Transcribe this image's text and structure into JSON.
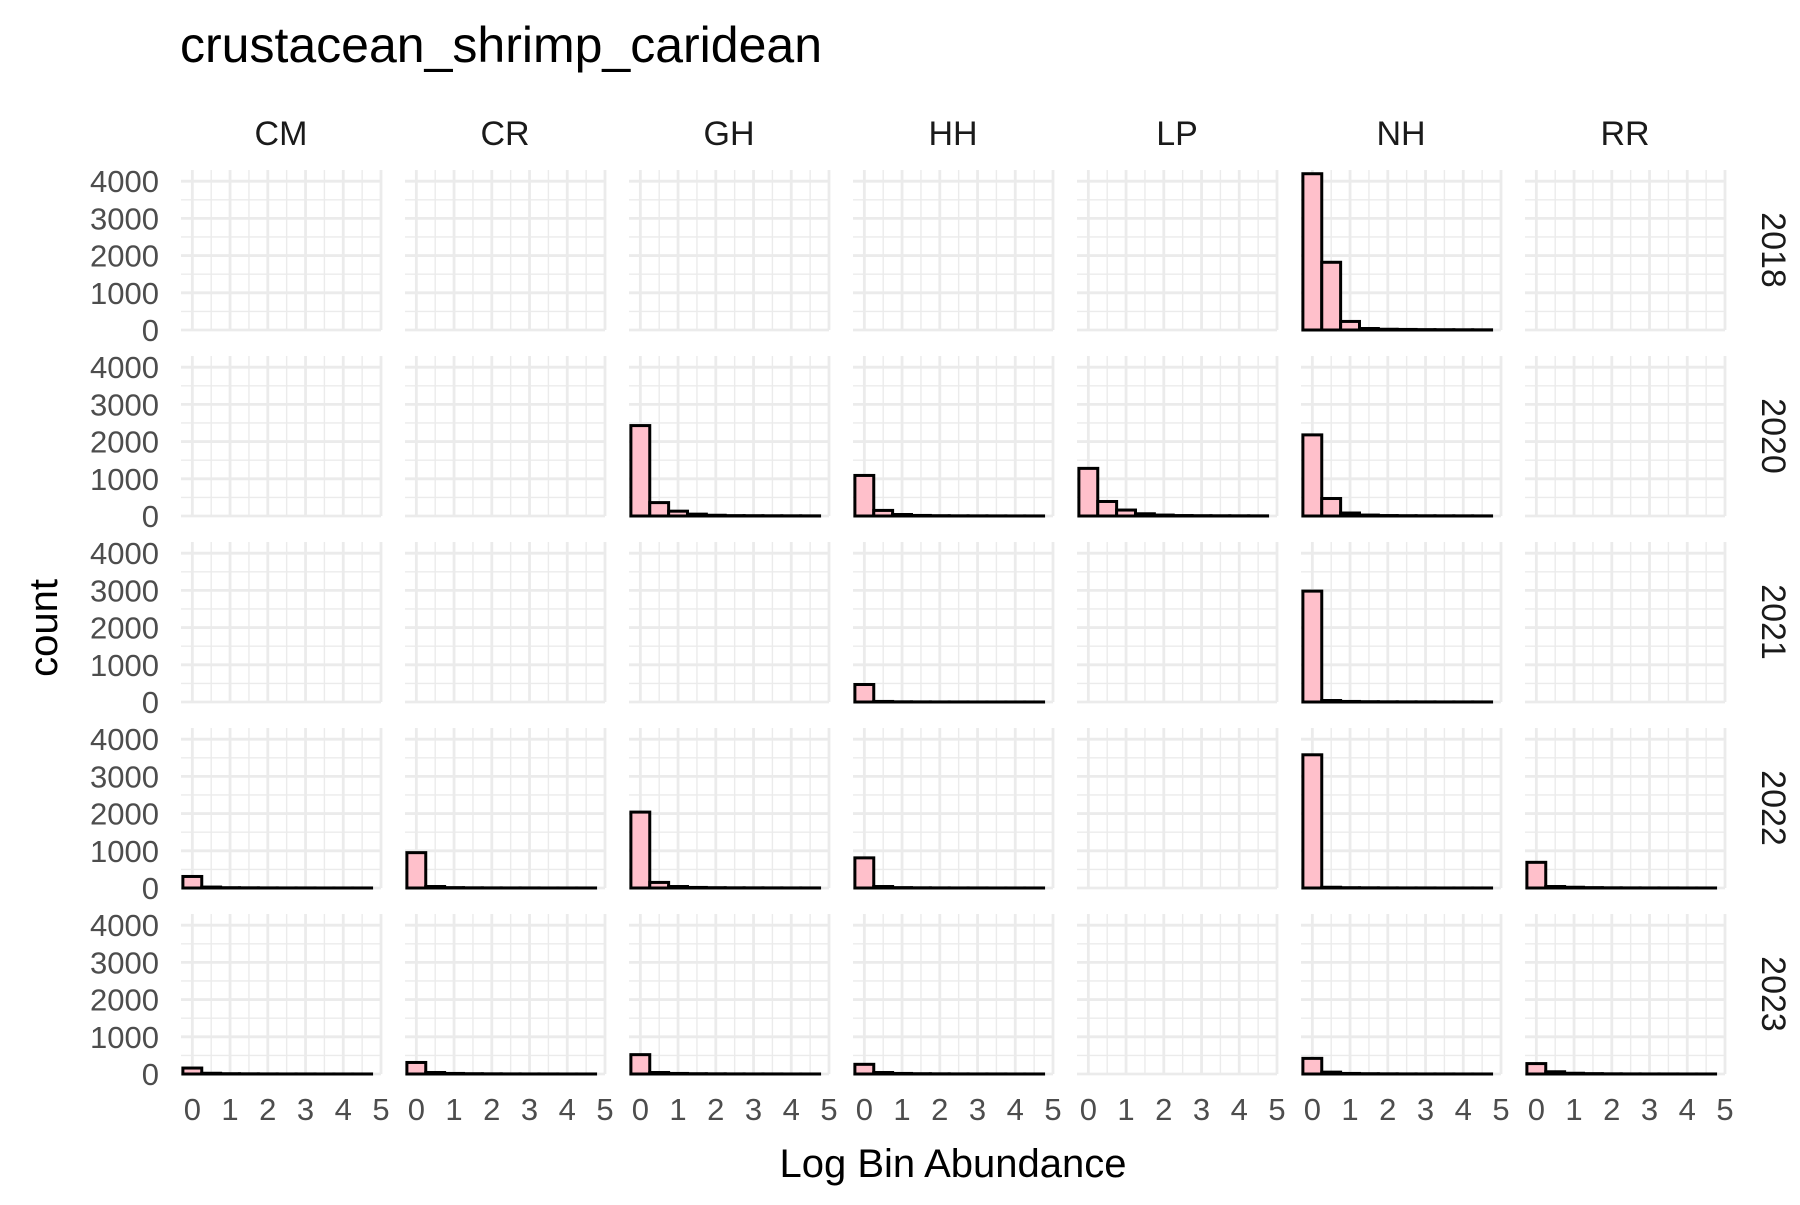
{
  "chart_data": {
    "type": "bar",
    "title": "crustacean_shrimp_caridean",
    "xlabel": "Log Bin Abundance",
    "ylabel": "count",
    "columns": [
      "CM",
      "CR",
      "GH",
      "HH",
      "LP",
      "NH",
      "RR"
    ],
    "rows": [
      "2018",
      "2020",
      "2021",
      "2022",
      "2023"
    ],
    "x_ticks": [
      0,
      1,
      2,
      3,
      4,
      5
    ],
    "y_ticks": [
      0,
      1000,
      2000,
      3000,
      4000
    ],
    "xlim": [
      -0.3,
      5.0
    ],
    "ylim": [
      0,
      4300
    ],
    "bin_width": 0.5,
    "bin_starts": [
      -0.25,
      0.25,
      0.75,
      1.25,
      1.75,
      2.25,
      2.75,
      3.25,
      3.75,
      4.25
    ],
    "grid": true,
    "fill_color": "#ffc0cb",
    "outline_color": "#000000",
    "grid_color": "#ebebeb",
    "panels": [
      {
        "column": "NH",
        "row": "2018",
        "counts": [
          4200,
          1820,
          230,
          40,
          20,
          15,
          10,
          8,
          6,
          5
        ]
      },
      {
        "column": "GH",
        "row": "2020",
        "counts": [
          2430,
          360,
          130,
          50,
          20,
          10,
          8,
          6,
          5,
          4
        ]
      },
      {
        "column": "HH",
        "row": "2020",
        "counts": [
          1090,
          150,
          40,
          15,
          8,
          5,
          4,
          3,
          2,
          2
        ]
      },
      {
        "column": "LP",
        "row": "2020",
        "counts": [
          1280,
          390,
          160,
          60,
          25,
          12,
          8,
          6,
          5,
          4
        ]
      },
      {
        "column": "NH",
        "row": "2020",
        "counts": [
          2180,
          470,
          80,
          25,
          12,
          8,
          6,
          5,
          4,
          3
        ]
      },
      {
        "column": "HH",
        "row": "2021",
        "counts": [
          470,
          15,
          5,
          3,
          2,
          2,
          1,
          1,
          1,
          1
        ]
      },
      {
        "column": "NH",
        "row": "2021",
        "counts": [
          2980,
          40,
          15,
          8,
          5,
          4,
          3,
          2,
          2,
          2
        ]
      },
      {
        "column": "CM",
        "row": "2022",
        "counts": [
          310,
          25,
          8,
          5,
          3,
          2,
          2,
          1,
          1,
          1
        ]
      },
      {
        "column": "CR",
        "row": "2022",
        "counts": [
          950,
          40,
          10,
          5,
          3,
          2,
          2,
          1,
          1,
          1
        ]
      },
      {
        "column": "GH",
        "row": "2022",
        "counts": [
          2040,
          150,
          40,
          15,
          8,
          5,
          4,
          3,
          2,
          2
        ]
      },
      {
        "column": "HH",
        "row": "2022",
        "counts": [
          810,
          40,
          10,
          5,
          3,
          2,
          2,
          1,
          1,
          1
        ]
      },
      {
        "column": "NH",
        "row": "2022",
        "counts": [
          3580,
          20,
          8,
          5,
          3,
          2,
          2,
          1,
          1,
          1
        ]
      },
      {
        "column": "RR",
        "row": "2022",
        "counts": [
          690,
          40,
          20,
          10,
          5,
          3,
          2,
          2,
          1,
          1
        ]
      },
      {
        "column": "CM",
        "row": "2023",
        "counts": [
          160,
          20,
          8,
          5,
          3,
          2,
          2,
          1,
          1,
          1
        ]
      },
      {
        "column": "CR",
        "row": "2023",
        "counts": [
          310,
          40,
          15,
          8,
          5,
          3,
          2,
          2,
          1,
          1
        ]
      },
      {
        "column": "GH",
        "row": "2023",
        "counts": [
          520,
          40,
          15,
          8,
          5,
          3,
          2,
          2,
          1,
          1
        ]
      },
      {
        "column": "HH",
        "row": "2023",
        "counts": [
          260,
          40,
          15,
          8,
          5,
          3,
          2,
          2,
          1,
          1
        ]
      },
      {
        "column": "NH",
        "row": "2023",
        "counts": [
          420,
          50,
          15,
          8,
          5,
          3,
          2,
          2,
          1,
          1
        ]
      },
      {
        "column": "RR",
        "row": "2023",
        "counts": [
          280,
          60,
          20,
          10,
          5,
          3,
          2,
          2,
          1,
          1
        ]
      }
    ]
  }
}
